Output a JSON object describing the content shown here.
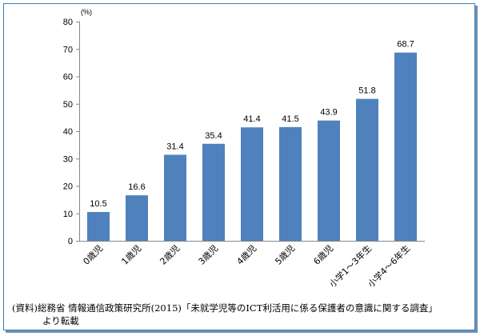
{
  "chart_data": {
    "type": "bar",
    "categories": [
      "0歳児",
      "1歳児",
      "2歳児",
      "3歳児",
      "4歳児",
      "5歳児",
      "6歳児",
      "小学1～3年生",
      "小学4～6年生"
    ],
    "values": [
      10.5,
      16.6,
      31.4,
      35.4,
      41.4,
      41.5,
      43.9,
      51.8,
      68.7
    ],
    "data_labels": [
      "10.5",
      "16.6",
      "31.4",
      "35.4",
      "41.4",
      "41.5",
      "43.9",
      "51.8",
      "68.7"
    ],
    "y_unit": "(%)",
    "ylim": [
      0,
      80
    ],
    "yticks": [
      0,
      10,
      20,
      30,
      40,
      50,
      60,
      70,
      80
    ],
    "bar_color": "#4f81bd",
    "grid": false
  },
  "caption": {
    "line1": "(資料)総務省 情報通信政策研究所(2015)「未就学児等のICT利活用に係る保護者の意識に関する調査」",
    "line2": "より転載"
  }
}
